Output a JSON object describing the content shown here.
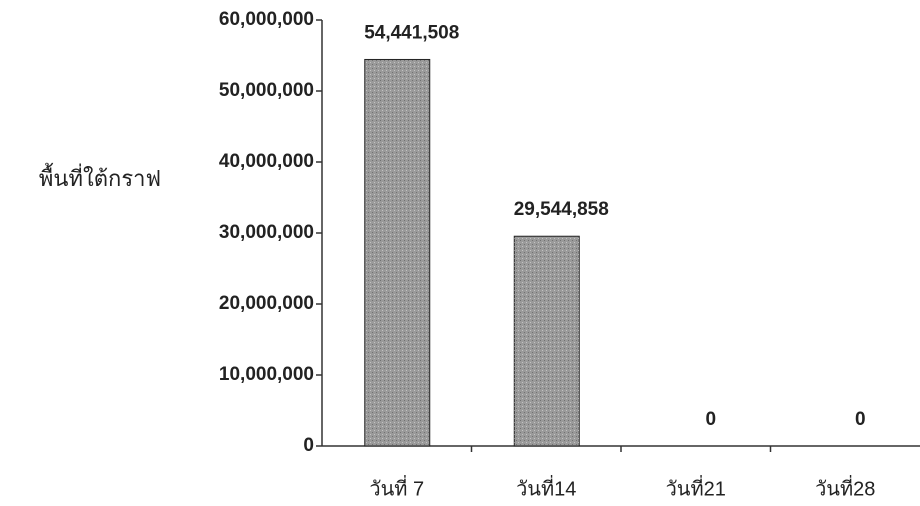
{
  "chart_data": {
    "type": "bar",
    "y_label": "พื้นที่ใต้กราฟ",
    "categories": [
      "วันที่ 7",
      "วันที่14",
      "วันที่21",
      "วันที่28"
    ],
    "values": [
      54441508,
      29544858,
      0,
      0
    ],
    "value_labels": [
      "54,441,508",
      "29,544,858",
      "0",
      "0"
    ],
    "color": "#9a9a9a",
    "ylim": [
      0,
      60000000
    ],
    "yticks": [
      0,
      {
        "value": 10000000,
        "label": "10,000,000"
      },
      {
        "value": 20000000,
        "label": "20,000,000"
      },
      {
        "value": 30000000,
        "label": "30,000,000"
      },
      {
        "value": 40000000,
        "label": "40,000,000"
      },
      {
        "value": 50000000,
        "label": "50,000,000"
      },
      {
        "value": 60000000,
        "label": "60,000,000"
      }
    ]
  }
}
